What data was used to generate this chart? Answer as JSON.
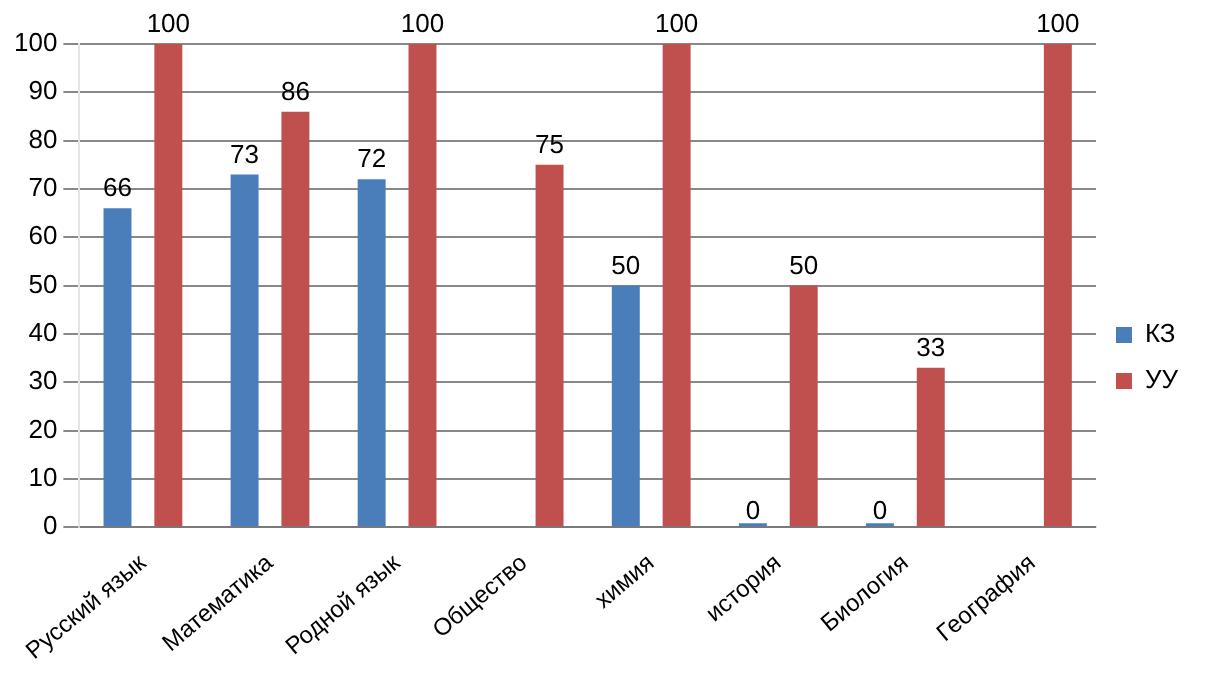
{
  "chart_data": {
    "type": "bar",
    "categories": [
      "Русский язык",
      "Математика",
      "Родной язык",
      "Общество",
      "химия",
      "история",
      "Биология",
      "География"
    ],
    "series": [
      {
        "name": "КЗ",
        "color": "#4a7ebb",
        "values": [
          66,
          73,
          72,
          null,
          50,
          0,
          0,
          null
        ]
      },
      {
        "name": "УУ",
        "color": "#c0504d",
        "values": [
          100,
          86,
          100,
          75,
          100,
          50,
          33,
          100
        ]
      }
    ],
    "ylim": [
      0,
      100
    ],
    "yticks": [
      0,
      10,
      20,
      30,
      40,
      50,
      60,
      70,
      80,
      90,
      100
    ],
    "grid": "y",
    "legend": "right",
    "data_labels": true
  }
}
